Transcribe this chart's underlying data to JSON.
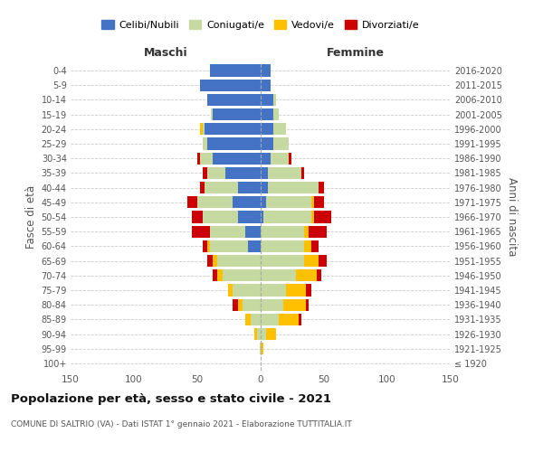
{
  "age_groups": [
    "100+",
    "95-99",
    "90-94",
    "85-89",
    "80-84",
    "75-79",
    "70-74",
    "65-69",
    "60-64",
    "55-59",
    "50-54",
    "45-49",
    "40-44",
    "35-39",
    "30-34",
    "25-29",
    "20-24",
    "15-19",
    "10-14",
    "5-9",
    "0-4"
  ],
  "birth_years": [
    "≤ 1920",
    "1921-1925",
    "1926-1930",
    "1931-1935",
    "1936-1940",
    "1941-1945",
    "1946-1950",
    "1951-1955",
    "1956-1960",
    "1961-1965",
    "1966-1970",
    "1971-1975",
    "1976-1980",
    "1981-1985",
    "1986-1990",
    "1991-1995",
    "1996-2000",
    "2001-2005",
    "2006-2010",
    "2011-2015",
    "2016-2020"
  ],
  "male": {
    "celibi": [
      0,
      0,
      0,
      0,
      0,
      0,
      0,
      0,
      10,
      12,
      18,
      22,
      18,
      28,
      38,
      42,
      44,
      38,
      42,
      48,
      40
    ],
    "coniugati": [
      0,
      1,
      3,
      8,
      14,
      22,
      30,
      34,
      30,
      28,
      28,
      28,
      26,
      14,
      10,
      4,
      2,
      1,
      0,
      0,
      0
    ],
    "vedovi": [
      0,
      0,
      2,
      4,
      4,
      4,
      4,
      4,
      2,
      0,
      0,
      0,
      0,
      0,
      0,
      0,
      2,
      0,
      0,
      0,
      0
    ],
    "divorziati": [
      0,
      0,
      0,
      0,
      4,
      0,
      4,
      4,
      4,
      14,
      8,
      8,
      4,
      4,
      2,
      0,
      0,
      0,
      0,
      0,
      0
    ]
  },
  "female": {
    "nubili": [
      0,
      0,
      0,
      0,
      0,
      0,
      0,
      0,
      0,
      0,
      2,
      4,
      6,
      6,
      8,
      10,
      10,
      10,
      10,
      8,
      8
    ],
    "coniugate": [
      0,
      0,
      4,
      14,
      18,
      20,
      28,
      34,
      34,
      34,
      38,
      36,
      40,
      26,
      14,
      12,
      10,
      4,
      2,
      0,
      0
    ],
    "vedove": [
      0,
      2,
      8,
      16,
      18,
      16,
      16,
      12,
      6,
      4,
      2,
      2,
      0,
      0,
      0,
      0,
      0,
      0,
      0,
      0,
      0
    ],
    "divorziate": [
      0,
      0,
      0,
      2,
      2,
      4,
      4,
      6,
      6,
      14,
      14,
      8,
      4,
      2,
      2,
      0,
      0,
      0,
      0,
      0,
      0
    ]
  },
  "colors": {
    "celibi": "#4472c4",
    "coniugati": "#c5d9a0",
    "vedovi": "#ffc000",
    "divorziati": "#cc0000"
  },
  "title": "Popolazione per età, sesso e stato civile - 2021",
  "subtitle": "COMUNE DI SALTRIO (VA) - Dati ISTAT 1° gennaio 2021 - Elaborazione TUTTITALIA.IT",
  "xlabel_left": "Maschi",
  "xlabel_right": "Femmine",
  "ylabel_left": "Fasce di età",
  "ylabel_right": "Anni di nascita",
  "xlim": 150,
  "legend_labels": [
    "Celibi/Nubili",
    "Coniugati/e",
    "Vedovi/e",
    "Divorziati/e"
  ],
  "bg_color": "#ffffff",
  "grid_color": "#cccccc"
}
